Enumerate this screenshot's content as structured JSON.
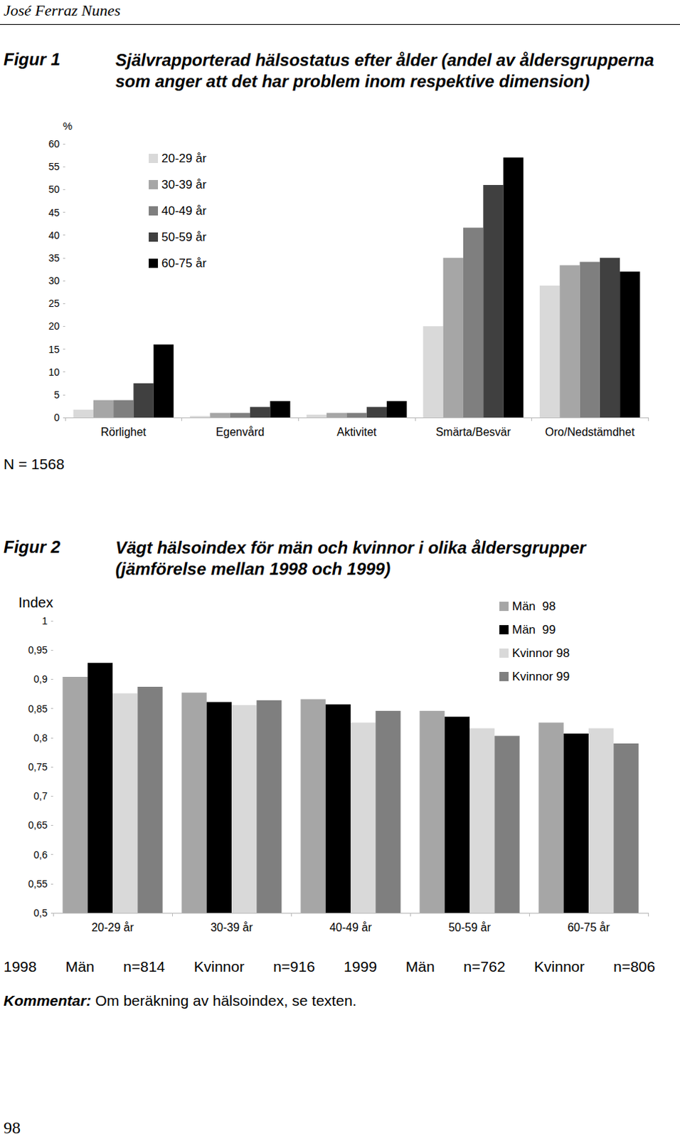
{
  "header": "José Ferraz Nunes",
  "page_number": "98",
  "chart_data": [
    {
      "type": "bar",
      "figure_label": "Figur 1",
      "title": "Självrapporterad hälsostatus efter ålder (andel av åldersgrupperna som anger att det har problem inom respektive dimension)",
      "y_label": "%",
      "note": "N = 1568",
      "categories": [
        "Rörlighet",
        "Egenvård",
        "Aktivitet",
        "Smärta/Besvär",
        "Oro/Nedstämdhet"
      ],
      "series": [
        {
          "name": "20-29 år",
          "color": "#d9d9d9",
          "values": [
            1.7,
            0.3,
            0.6,
            20,
            28.9
          ]
        },
        {
          "name": "30-39 år",
          "color": "#a6a6a6",
          "values": [
            3.8,
            1.0,
            1.0,
            35,
            33.4
          ]
        },
        {
          "name": "40-49 år",
          "color": "#7f7f7f",
          "values": [
            3.8,
            1.0,
            1.0,
            41.6,
            34.1
          ]
        },
        {
          "name": "50-59 år",
          "color": "#404040",
          "values": [
            7.5,
            2.3,
            2.3,
            51,
            35
          ]
        },
        {
          "name": "60-75 år",
          "color": "#000000",
          "values": [
            16,
            3.6,
            3.6,
            57,
            32
          ]
        }
      ],
      "ylim": [
        0,
        60
      ],
      "yticks": [
        0,
        5,
        10,
        15,
        20,
        25,
        30,
        35,
        40,
        45,
        50,
        55,
        60
      ],
      "grid": false,
      "legend": "top-left"
    },
    {
      "type": "bar",
      "figure_label": "Figur 2",
      "title": "Vägt hälsoindex för män och kvinnor i olika åldersgrupper (jämförelse mellan 1998 och 1999)",
      "y_label": "Index",
      "categories": [
        "20-29 år",
        "30-39 år",
        "40-49 år",
        "50-59 år",
        "60-75 år"
      ],
      "series": [
        {
          "name": "Män  98",
          "color": "#a6a6a6",
          "values": [
            0.904,
            0.877,
            0.866,
            0.846,
            0.826
          ]
        },
        {
          "name": "Män  99",
          "color": "#000000",
          "values": [
            0.928,
            0.861,
            0.857,
            0.836,
            0.807
          ]
        },
        {
          "name": "Kvinnor 98",
          "color": "#d9d9d9",
          "values": [
            0.876,
            0.856,
            0.826,
            0.816,
            0.816
          ]
        },
        {
          "name": "Kvinnor 99",
          "color": "#7f7f7f",
          "values": [
            0.887,
            0.864,
            0.846,
            0.803,
            0.79
          ]
        }
      ],
      "ylim": [
        0.5,
        1
      ],
      "yticks": [
        {
          "value": 0.5,
          "label": "0,5"
        },
        {
          "value": 0.55,
          "label": "0,55"
        },
        {
          "value": 0.6,
          "label": "0,6"
        },
        {
          "value": 0.65,
          "label": "0,65"
        },
        {
          "value": 0.7,
          "label": "0,7"
        },
        {
          "value": 0.75,
          "label": "0,75"
        },
        {
          "value": 0.8,
          "label": "0,8"
        },
        {
          "value": 0.85,
          "label": "0,85"
        },
        {
          "value": 0.9,
          "label": "0,9"
        },
        {
          "value": 0.95,
          "label": "0,95"
        },
        1
      ],
      "grid": false,
      "legend": "top-right"
    }
  ],
  "footer": [
    "1998",
    "Män",
    "n=814",
    "Kvinnor",
    "n=916",
    "1999",
    "Män",
    "n=762",
    "Kvinnor",
    "n=806"
  ],
  "comment": {
    "label": "Kommentar:",
    "text": "Om beräkning av hälsoindex, se texten."
  }
}
